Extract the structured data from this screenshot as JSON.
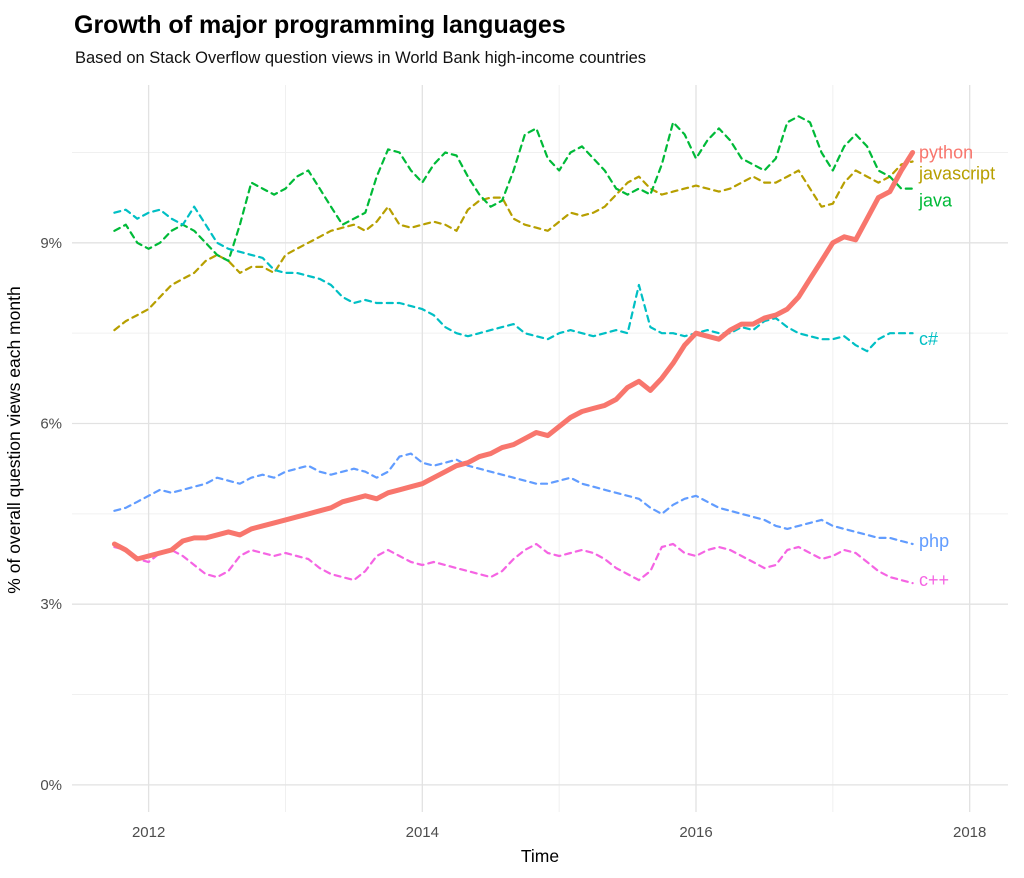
{
  "chart_data": {
    "type": "line",
    "title": "Growth of major programming languages",
    "subtitle": "Based on Stack Overflow question views in World Bank high-income countries",
    "xlabel": "Time",
    "ylabel": "% of overall question views each month",
    "xlim": [
      2011.44,
      2018.28
    ],
    "ylim": [
      -0.45,
      11.62
    ],
    "legend": "direct-labels-at-line-ends-right",
    "grid": {
      "x_major": [
        2012,
        2014,
        2016,
        2018
      ],
      "x_minor": [
        2013,
        2015,
        2017
      ],
      "y_major": [
        0,
        3,
        6,
        9
      ],
      "y_minor": [
        1.5,
        4.5,
        7.5,
        10.5
      ]
    },
    "x_ticks": [
      {
        "value": 2012,
        "label": "2012"
      },
      {
        "value": 2014,
        "label": "2014"
      },
      {
        "value": 2016,
        "label": "2016"
      },
      {
        "value": 2018,
        "label": "2018"
      }
    ],
    "y_ticks": [
      {
        "value": 0,
        "label": "0%"
      },
      {
        "value": 3,
        "label": "3%"
      },
      {
        "value": 6,
        "label": "6%"
      },
      {
        "value": 9,
        "label": "9%"
      }
    ],
    "label_x": 2017.63,
    "x": [
      2011.75,
      2011.833,
      2011.917,
      2012.0,
      2012.083,
      2012.167,
      2012.25,
      2012.333,
      2012.417,
      2012.5,
      2012.583,
      2012.667,
      2012.75,
      2012.833,
      2012.917,
      2013.0,
      2013.083,
      2013.167,
      2013.25,
      2013.333,
      2013.417,
      2013.5,
      2013.583,
      2013.667,
      2013.75,
      2013.833,
      2013.917,
      2014.0,
      2014.083,
      2014.167,
      2014.25,
      2014.333,
      2014.417,
      2014.5,
      2014.583,
      2014.667,
      2014.75,
      2014.833,
      2014.917,
      2015.0,
      2015.083,
      2015.167,
      2015.25,
      2015.333,
      2015.417,
      2015.5,
      2015.583,
      2015.667,
      2015.75,
      2015.833,
      2015.917,
      2016.0,
      2016.083,
      2016.167,
      2016.25,
      2016.333,
      2016.417,
      2016.5,
      2016.583,
      2016.667,
      2016.75,
      2016.833,
      2016.917,
      2017.0,
      2017.083,
      2017.167,
      2017.25,
      2017.333,
      2017.417,
      2017.5,
      2017.583
    ],
    "series": [
      {
        "id": "javascript",
        "name": "javascript",
        "color": "#B79F00",
        "width": 2.2,
        "dash": "6 5",
        "label_value": 10.15,
        "values": [
          7.55,
          7.7,
          7.8,
          7.9,
          8.1,
          8.3,
          8.4,
          8.5,
          8.7,
          8.8,
          8.7,
          8.5,
          8.6,
          8.6,
          8.5,
          8.8,
          8.9,
          9.0,
          9.1,
          9.2,
          9.25,
          9.3,
          9.2,
          9.35,
          9.6,
          9.3,
          9.25,
          9.3,
          9.35,
          9.3,
          9.2,
          9.55,
          9.7,
          9.75,
          9.75,
          9.4,
          9.3,
          9.25,
          9.2,
          9.35,
          9.5,
          9.45,
          9.5,
          9.6,
          9.8,
          10.0,
          10.1,
          9.9,
          9.8,
          9.85,
          9.9,
          9.95,
          9.9,
          9.85,
          9.9,
          10.0,
          10.1,
          10.0,
          10.0,
          10.1,
          10.2,
          9.9,
          9.6,
          9.65,
          10.0,
          10.2,
          10.1,
          10.0,
          10.1,
          10.3,
          10.35
        ]
      },
      {
        "id": "java",
        "name": "java",
        "color": "#00BA38",
        "width": 2.2,
        "dash": "6 5",
        "label_value": 9.7,
        "values": [
          9.2,
          9.3,
          9.0,
          8.9,
          9.0,
          9.2,
          9.3,
          9.2,
          9.0,
          8.8,
          8.7,
          9.3,
          10.0,
          9.9,
          9.8,
          9.9,
          10.1,
          10.2,
          9.9,
          9.6,
          9.3,
          9.4,
          9.5,
          10.1,
          10.55,
          10.5,
          10.2,
          10.0,
          10.3,
          10.5,
          10.45,
          10.1,
          9.8,
          9.6,
          9.7,
          10.2,
          10.8,
          10.9,
          10.4,
          10.2,
          10.5,
          10.6,
          10.4,
          10.2,
          9.9,
          9.8,
          9.9,
          9.8,
          10.3,
          11.0,
          10.8,
          10.4,
          10.7,
          10.9,
          10.7,
          10.4,
          10.3,
          10.2,
          10.4,
          11.0,
          11.1,
          11.0,
          10.5,
          10.2,
          10.6,
          10.8,
          10.6,
          10.2,
          10.1,
          9.9,
          9.9
        ]
      },
      {
        "id": "c-sharp",
        "name": "c#",
        "color": "#00BFC4",
        "width": 2.2,
        "dash": "6 5",
        "label_value": 7.4,
        "values": [
          9.5,
          9.55,
          9.4,
          9.5,
          9.55,
          9.4,
          9.3,
          9.6,
          9.3,
          9.0,
          8.9,
          8.85,
          8.8,
          8.75,
          8.55,
          8.5,
          8.5,
          8.45,
          8.4,
          8.3,
          8.1,
          8.0,
          8.05,
          8.0,
          8.0,
          8.0,
          7.95,
          7.9,
          7.8,
          7.6,
          7.5,
          7.45,
          7.5,
          7.55,
          7.6,
          7.65,
          7.5,
          7.45,
          7.4,
          7.5,
          7.55,
          7.5,
          7.45,
          7.5,
          7.55,
          7.5,
          8.3,
          7.6,
          7.5,
          7.5,
          7.45,
          7.5,
          7.55,
          7.5,
          7.5,
          7.6,
          7.55,
          7.7,
          7.75,
          7.6,
          7.5,
          7.45,
          7.4,
          7.4,
          7.45,
          7.3,
          7.2,
          7.4,
          7.5,
          7.5,
          7.5
        ]
      },
      {
        "id": "php",
        "name": "php",
        "color": "#619CFF",
        "width": 2.2,
        "dash": "6 5",
        "label_value": 4.05,
        "values": [
          4.55,
          4.6,
          4.7,
          4.8,
          4.9,
          4.85,
          4.9,
          4.95,
          5.0,
          5.1,
          5.05,
          5.0,
          5.1,
          5.15,
          5.1,
          5.2,
          5.25,
          5.3,
          5.2,
          5.15,
          5.2,
          5.25,
          5.2,
          5.1,
          5.2,
          5.45,
          5.5,
          5.35,
          5.3,
          5.35,
          5.4,
          5.3,
          5.25,
          5.2,
          5.15,
          5.1,
          5.05,
          5.0,
          5.0,
          5.05,
          5.1,
          5.0,
          4.95,
          4.9,
          4.85,
          4.8,
          4.75,
          4.6,
          4.5,
          4.65,
          4.75,
          4.8,
          4.7,
          4.6,
          4.55,
          4.5,
          4.45,
          4.4,
          4.3,
          4.25,
          4.3,
          4.35,
          4.4,
          4.3,
          4.25,
          4.2,
          4.15,
          4.1,
          4.1,
          4.05,
          4.0
        ]
      },
      {
        "id": "c-plus-plus",
        "name": "c++",
        "color": "#F564E3",
        "width": 2.2,
        "dash": "6 5",
        "label_value": 3.4,
        "values": [
          3.95,
          3.9,
          3.75,
          3.7,
          3.85,
          3.9,
          3.8,
          3.65,
          3.5,
          3.45,
          3.55,
          3.8,
          3.9,
          3.85,
          3.8,
          3.85,
          3.8,
          3.75,
          3.6,
          3.5,
          3.45,
          3.4,
          3.55,
          3.8,
          3.9,
          3.8,
          3.7,
          3.65,
          3.7,
          3.65,
          3.6,
          3.55,
          3.5,
          3.45,
          3.55,
          3.75,
          3.9,
          4.0,
          3.85,
          3.8,
          3.85,
          3.9,
          3.85,
          3.75,
          3.6,
          3.5,
          3.4,
          3.55,
          3.95,
          4.0,
          3.85,
          3.8,
          3.9,
          3.95,
          3.9,
          3.8,
          3.7,
          3.6,
          3.65,
          3.9,
          3.95,
          3.85,
          3.75,
          3.8,
          3.9,
          3.85,
          3.7,
          3.55,
          3.45,
          3.4,
          3.35
        ]
      },
      {
        "id": "python",
        "name": "python",
        "color": "#F8766D",
        "width": 5,
        "dash": null,
        "label_value": 10.5,
        "values": [
          4.0,
          3.9,
          3.75,
          3.8,
          3.85,
          3.9,
          4.05,
          4.1,
          4.1,
          4.15,
          4.2,
          4.15,
          4.25,
          4.3,
          4.35,
          4.4,
          4.45,
          4.5,
          4.55,
          4.6,
          4.7,
          4.75,
          4.8,
          4.75,
          4.85,
          4.9,
          4.95,
          5.0,
          5.1,
          5.2,
          5.3,
          5.35,
          5.45,
          5.5,
          5.6,
          5.65,
          5.75,
          5.85,
          5.8,
          5.95,
          6.1,
          6.2,
          6.25,
          6.3,
          6.4,
          6.6,
          6.7,
          6.55,
          6.75,
          7.0,
          7.3,
          7.5,
          7.45,
          7.4,
          7.55,
          7.65,
          7.65,
          7.75,
          7.8,
          7.9,
          8.1,
          8.4,
          8.7,
          9.0,
          9.1,
          9.05,
          9.4,
          9.75,
          9.85,
          10.2,
          10.5
        ]
      }
    ]
  }
}
